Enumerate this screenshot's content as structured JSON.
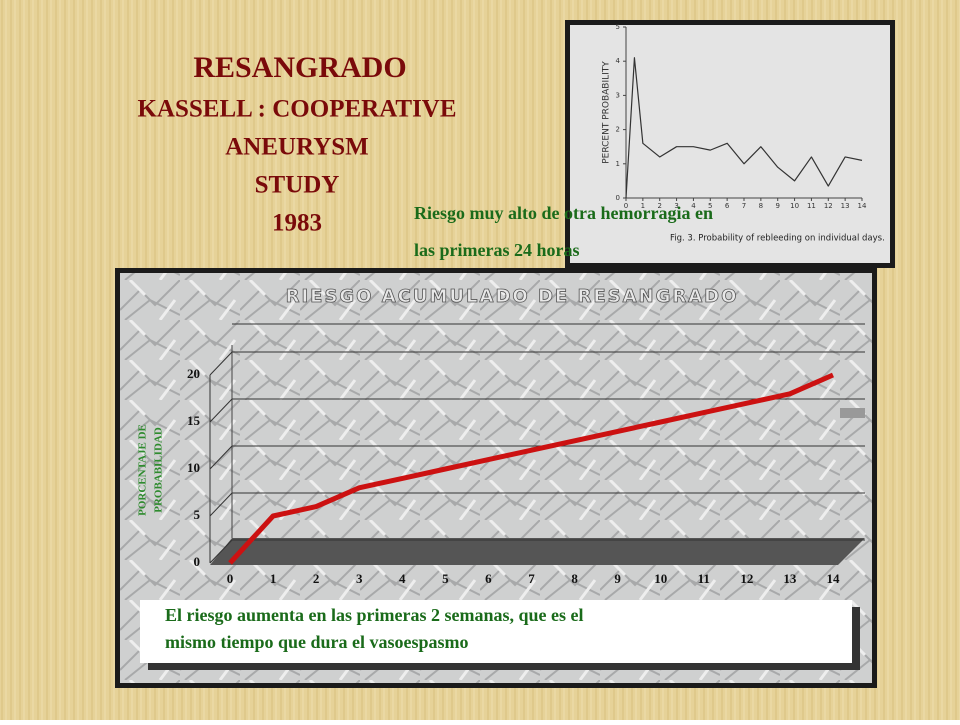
{
  "slide": {
    "title": "RESANGRADO",
    "subtitle_lines": [
      "KASSELL : COOPERATIVE",
      "ANEURYSM",
      "STUDY",
      "1983"
    ],
    "note_top_lines": [
      "Riesgo muy alto de otra hemorragia en",
      "las primeras 24 horas"
    ],
    "note_bottom_lines": [
      "El riesgo aumenta en las primeras 2 semanas,  que es el",
      "mismo tiempo que dura  el vasoespasmo"
    ]
  },
  "chart_data": [
    {
      "type": "line",
      "y_label": "PERCENT PROBABILITY",
      "caption": "Fig. 3.   Probability of rebleeding on individual days.",
      "x": [
        0,
        0.5,
        1,
        2,
        3,
        4,
        5,
        6,
        7,
        8,
        9,
        10,
        11,
        12,
        13,
        14
      ],
      "values": [
        0,
        4.1,
        1.6,
        1.2,
        1.5,
        1.5,
        1.4,
        1.6,
        1.0,
        1.5,
        0.9,
        0.5,
        1.2,
        0.35,
        1.2,
        1.1
      ],
      "color": "#333333",
      "xlim": [
        0,
        14
      ],
      "ylim": [
        0,
        5
      ],
      "xticks": [
        0,
        1,
        2,
        3,
        4,
        5,
        6,
        7,
        8,
        9,
        10,
        11,
        12,
        13,
        14
      ],
      "yticks": [
        0,
        1,
        2,
        3,
        4,
        5
      ]
    },
    {
      "type": "line",
      "title": "RIESGO ACUMULADO DE RESANGRADO",
      "y_label_lines": [
        "PORCENTAJE DE",
        "PROBABILIDAD"
      ],
      "x": [
        0,
        1,
        2,
        3,
        4,
        5,
        6,
        7,
        8,
        9,
        10,
        11,
        12,
        13,
        14
      ],
      "values": [
        0,
        5,
        6,
        8,
        9,
        10,
        11,
        12,
        13,
        14,
        15,
        16,
        17,
        18,
        20
      ],
      "color": "#cc1111",
      "xlim": [
        0,
        14
      ],
      "ylim": [
        0,
        20
      ],
      "xticks": [
        0,
        1,
        2,
        3,
        4,
        5,
        6,
        7,
        8,
        9,
        10,
        11,
        12,
        13,
        14
      ],
      "yticks": [
        0,
        5,
        10,
        15,
        20
      ],
      "grid": true
    }
  ]
}
